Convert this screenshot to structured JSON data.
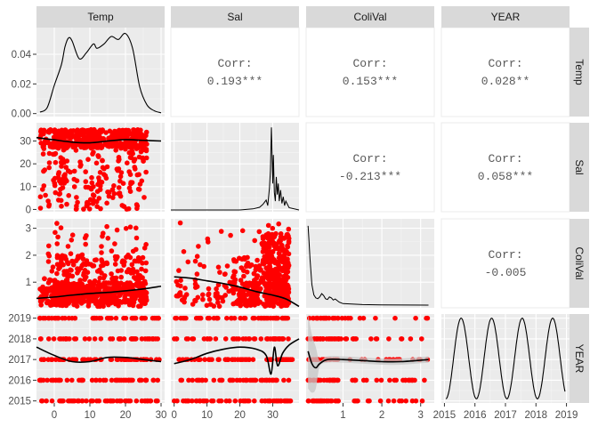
{
  "chart_data": {
    "type": "scatter",
    "variables": [
      "Temp",
      "Sal",
      "ColiVal",
      "YEAR"
    ],
    "x_ticks": {
      "Temp": {
        "values": [
          0,
          10,
          20,
          30
        ],
        "labels": [
          "0",
          "10",
          "20",
          "30"
        ],
        "range": [
          -5,
          31
        ]
      },
      "Sal": {
        "values": [
          0,
          10,
          20,
          30
        ],
        "labels": [
          "0",
          "10",
          "20",
          "30"
        ],
        "range": [
          -1,
          38
        ]
      },
      "ColiVal": {
        "values": [
          1,
          2,
          3
        ],
        "labels": [
          "1",
          "2",
          "3"
        ],
        "range": [
          0.05,
          3.35
        ]
      },
      "YEAR": {
        "values": [
          2015,
          2016,
          2017,
          2018,
          2019
        ],
        "labels": [
          "2015",
          "2016",
          "2017",
          "2018",
          "2019"
        ],
        "range": [
          2014.9,
          2019.1
        ]
      }
    },
    "y_ticks": {
      "Temp": {
        "values": [
          0,
          0.02,
          0.04
        ],
        "labels": [
          "0.00",
          "0.02",
          "0.04"
        ],
        "range": [
          -0.002,
          0.058
        ]
      },
      "Sal": {
        "values": [
          0,
          10,
          20,
          30
        ],
        "labels": [
          "0",
          "10",
          "20",
          "30"
        ],
        "range": [
          -1,
          38
        ]
      },
      "ColiVal": {
        "values": [
          1,
          2,
          3
        ],
        "labels": [
          "1",
          "2",
          "3"
        ],
        "range": [
          0.05,
          3.35
        ]
      },
      "YEAR": {
        "values": [
          2015,
          2016,
          2017,
          2018,
          2019
        ],
        "labels": [
          "2015",
          "2016",
          "2017",
          "2018",
          "2019"
        ],
        "range": [
          2014.9,
          2019.2
        ]
      }
    },
    "correlations": [
      {
        "row": "Temp",
        "col": "Sal",
        "label": "Corr:",
        "value": "0.193***"
      },
      {
        "row": "Temp",
        "col": "ColiVal",
        "label": "Corr:",
        "value": "0.153***"
      },
      {
        "row": "Temp",
        "col": "YEAR",
        "label": "Corr:",
        "value": "0.028**"
      },
      {
        "row": "Sal",
        "col": "ColiVal",
        "label": "Corr:",
        "value": "-0.213***"
      },
      {
        "row": "Sal",
        "col": "YEAR",
        "label": "Corr:",
        "value": "0.058***"
      },
      {
        "row": "ColiVal",
        "col": "YEAR",
        "label": "Corr:",
        "value": "-0.005"
      }
    ],
    "densities": {
      "Temp": {
        "x": [
          -4,
          -2,
          0,
          2,
          3,
          4,
          5,
          7,
          9,
          11,
          12,
          14,
          16,
          18,
          20,
          22,
          24,
          26,
          28,
          30
        ],
        "y": [
          0.001,
          0.004,
          0.019,
          0.033,
          0.045,
          0.051,
          0.049,
          0.037,
          0.041,
          0.047,
          0.044,
          0.047,
          0.052,
          0.05,
          0.054,
          0.044,
          0.018,
          0.006,
          0.002,
          0.0005
        ]
      },
      "Sal": {
        "x": [
          -1,
          20,
          24,
          26,
          27,
          28,
          28.5,
          29,
          29.3,
          29.6,
          29.8,
          30.0,
          30.2,
          30.5,
          30.8,
          31.1,
          31.4,
          31.7,
          32.0,
          32.4,
          32.8,
          33.2,
          33.6,
          34,
          35,
          38
        ],
        "y": [
          0,
          0,
          0.5,
          1.2,
          2.5,
          4.5,
          2.0,
          10.0,
          18.0,
          37.5,
          27.0,
          12.0,
          25.0,
          8.0,
          4.0,
          15.0,
          7.0,
          12.0,
          4.0,
          9.0,
          3.0,
          6.0,
          2.0,
          4.0,
          1.0,
          0
        ],
        "ymax": 38
      },
      "ColiVal": {
        "x": [
          0.1,
          0.12,
          0.15,
          0.2,
          0.25,
          0.3,
          0.35,
          0.4,
          0.45,
          0.5,
          0.55,
          0.6,
          0.65,
          0.7,
          0.75,
          0.8,
          0.9,
          1.0,
          1.5,
          2.0,
          3.2
        ],
        "y": [
          3.1,
          2.6,
          1.8,
          0.8,
          0.4,
          0.28,
          0.25,
          0.32,
          0.45,
          0.38,
          0.25,
          0.22,
          0.32,
          0.28,
          0.2,
          0.24,
          0.12,
          0.06,
          0.02,
          0.01,
          0.0
        ]
      },
      "YEAR": {
        "cycles": 4,
        "min": 2015.1,
        "max": 2019.0,
        "x_start": 2015.05,
        "x_end": 2018.95
      }
    },
    "smooth_lines": {
      "Sal_vs_Temp": {
        "x": [
          -5,
          0,
          5,
          10,
          15,
          20,
          25,
          30
        ],
        "y": [
          31.5,
          30.5,
          29.5,
          29.2,
          30.0,
          30.6,
          30.3,
          30.0
        ]
      },
      "ColiVal_vs_Temp": {
        "x": [
          -5,
          0,
          5,
          10,
          15,
          20,
          25,
          30
        ],
        "y": [
          0.4,
          0.45,
          0.52,
          0.58,
          0.62,
          0.68,
          0.75,
          0.85
        ]
      },
      "ColiVal_vs_Sal": {
        "x": [
          0,
          5,
          10,
          15,
          20,
          25,
          30,
          34,
          38
        ],
        "y": [
          1.2,
          1.15,
          1.05,
          0.95,
          0.82,
          0.65,
          0.52,
          0.38,
          0.1
        ]
      },
      "YEAR_vs_Temp": {
        "x": [
          -5,
          0,
          5,
          10,
          15,
          20,
          25,
          30
        ],
        "y": [
          2017.6,
          2017.2,
          2016.9,
          2016.9,
          2017.1,
          2017.1,
          2017.0,
          2016.9
        ]
      },
      "YEAR_vs_Sal": {
        "x": [
          0,
          5,
          10,
          15,
          20,
          25,
          28,
          29.5,
          30.5,
          31.5,
          33,
          35,
          38
        ],
        "y": [
          2016.8,
          2017.0,
          2017.3,
          2017.5,
          2017.6,
          2017.5,
          2017.2,
          2016.3,
          2017.6,
          2016.7,
          2017.3,
          2017.7,
          2018.0
        ]
      },
      "YEAR_vs_ColiVal": {
        "x": [
          0.1,
          0.2,
          0.3,
          0.4,
          0.6,
          1.0,
          1.5,
          2.0,
          2.5,
          3.2
        ],
        "y": [
          2017.4,
          2016.8,
          2016.6,
          2016.8,
          2017.0,
          2017.0,
          2016.95,
          2016.9,
          2016.9,
          2017.0
        ]
      }
    },
    "year_levels": [
      2015,
      2016,
      2017,
      2018,
      2019
    ],
    "point_color": "#ff0000",
    "line_color": "#000000",
    "panel_background": "#ebebeb",
    "strip_background": "#d9d9d9",
    "ribbon_color": "#c6c6c6"
  }
}
